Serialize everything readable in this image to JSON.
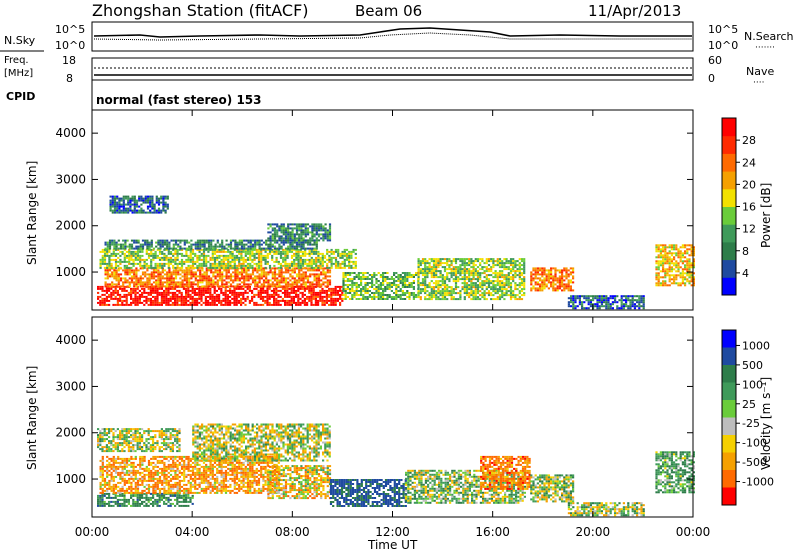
{
  "header": {
    "station": "Zhongshan Station (fitACF)",
    "beam": "Beam 06",
    "date": "11/Apr/2013"
  },
  "top_panels": {
    "nsky_label": "N.Sky",
    "nsearch_label": "N.Search",
    "nsearch_dots": "·······",
    "left_ticks": [
      "10^5",
      "10^0"
    ],
    "right_ticks": [
      "10^5",
      "10^0"
    ],
    "freq_label_1": "Freq.",
    "freq_label_2": "[MHz]",
    "freq_ticks": [
      "18",
      "8"
    ],
    "nave_ticks": [
      "60",
      "0"
    ],
    "nave_label": "Nave",
    "nave_dots": "····",
    "cpid_label": "CPID",
    "cpid_text": "normal (fast stereo) 153"
  },
  "axes": {
    "ylabel": "Slant Range [km]",
    "xlabel": "Time UT",
    "yticks": [
      "1000",
      "2000",
      "3000",
      "4000"
    ],
    "xticks": [
      "00:00",
      "04:00",
      "08:00",
      "12:00",
      "16:00",
      "20:00",
      "00:00"
    ]
  },
  "power_colorbar": {
    "label": "Power [dB]",
    "ticks": [
      "4",
      "8",
      "12",
      "16",
      "20",
      "24",
      "28"
    ],
    "colors": [
      "#0000ff",
      "#1f4aa0",
      "#2e7d4a",
      "#3f9a5a",
      "#6acc3a",
      "#f2e100",
      "#f5a000",
      "#ff6a00",
      "#ff2a00",
      "#ff0000"
    ]
  },
  "velocity_colorbar": {
    "label": "Velocity [m s⁻¹]",
    "ticks": [
      "1000",
      "500",
      "100",
      "25",
      "-25",
      "-100",
      "-500",
      "-1000"
    ],
    "colors": [
      "#0000ff",
      "#1f4aa0",
      "#2e7d4a",
      "#3f9a5a",
      "#6acc3a",
      "#bdbdbd",
      "#f5d000",
      "#f5a000",
      "#ff6a00",
      "#ff0000"
    ]
  },
  "chart_data": {
    "type": "heatmap",
    "title": "Zhongshan Station (fitACF)  Beam 06  11/Apr/2013",
    "xlabel": "Time UT",
    "ylabel": "Slant Range [km]",
    "x_range_hours": [
      0,
      24
    ],
    "y_range_km": [
      180,
      4500
    ],
    "panels": [
      {
        "name": "Power [dB]",
        "value_range": [
          0,
          30
        ],
        "patches": [
          {
            "t": [
              0.2,
              10.0
            ],
            "r": [
              300,
              700
            ],
            "v": 28
          },
          {
            "t": [
              0.5,
              9.5
            ],
            "r": [
              700,
              1100
            ],
            "v": 22
          },
          {
            "t": [
              0.3,
              10.5
            ],
            "r": [
              1100,
              1500
            ],
            "v": 14
          },
          {
            "t": [
              0.5,
              9.0
            ],
            "r": [
              1500,
              1700
            ],
            "v": 8
          },
          {
            "t": [
              7.0,
              9.5
            ],
            "r": [
              1700,
              2050
            ],
            "v": 8
          },
          {
            "t": [
              0.7,
              3.0
            ],
            "r": [
              2300,
              2650
            ],
            "v": 6
          },
          {
            "t": [
              10.0,
              13.0
            ],
            "r": [
              400,
              1000
            ],
            "v": 12
          },
          {
            "t": [
              13.0,
              17.3
            ],
            "r": [
              400,
              1300
            ],
            "v": 14
          },
          {
            "t": [
              17.5,
              19.2
            ],
            "r": [
              600,
              1100
            ],
            "v": 22
          },
          {
            "t": [
              19.0,
              22.0
            ],
            "r": [
              200,
              500
            ],
            "v": 6
          },
          {
            "t": [
              22.5,
              24.0
            ],
            "r": [
              700,
              1600
            ],
            "v": 18
          }
        ]
      },
      {
        "name": "Velocity [m s-1]",
        "value_range": [
          -1000,
          1000
        ],
        "patches": [
          {
            "t": [
              0.2,
              4.0
            ],
            "r": [
              400,
              700
            ],
            "v": 300
          },
          {
            "t": [
              0.3,
              7.5
            ],
            "r": [
              700,
              1500
            ],
            "v": -200
          },
          {
            "t": [
              0.2,
              3.5
            ],
            "r": [
              1600,
              2100
            ],
            "v": 10
          },
          {
            "t": [
              4.0,
              9.5
            ],
            "r": [
              1400,
              2200
            ],
            "v": 10
          },
          {
            "t": [
              7.0,
              9.5
            ],
            "r": [
              600,
              1300
            ],
            "v": -100
          },
          {
            "t": [
              9.5,
              12.5
            ],
            "r": [
              400,
              1000
            ],
            "v": 600
          },
          {
            "t": [
              12.5,
              17.3
            ],
            "r": [
              500,
              1200
            ],
            "v": 80
          },
          {
            "t": [
              15.5,
              17.5
            ],
            "r": [
              800,
              1500
            ],
            "v": -300
          },
          {
            "t": [
              17.5,
              19.2
            ],
            "r": [
              500,
              1100
            ],
            "v": 60
          },
          {
            "t": [
              19.0,
              22.0
            ],
            "r": [
              200,
              500
            ],
            "v": 50
          },
          {
            "t": [
              22.5,
              24.0
            ],
            "r": [
              700,
              1600
            ],
            "v": 200
          }
        ]
      }
    ]
  }
}
